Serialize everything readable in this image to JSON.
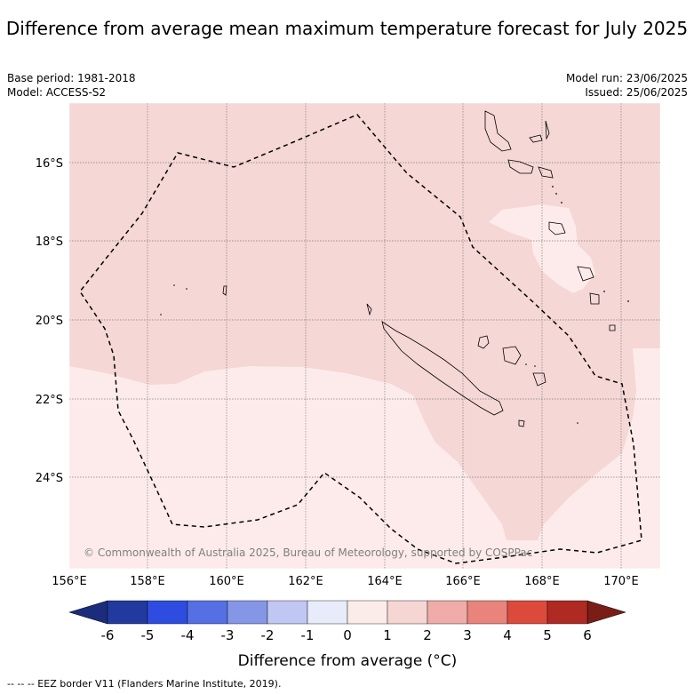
{
  "title": "Difference from average mean maximum temperature forecast for July 2025",
  "base_period": "Base period: 1981-2018",
  "model": "Model: ACCESS-S2",
  "model_run": "Model run: 23/06/2025",
  "issued": "Issued: 25/06/2025",
  "credit": "© Commonwealth of Australia 2025, Bureau of Meteorology, supported by COSPPac",
  "footer": "--  --  -- EEZ border V11 (Flanders Marine Institute, 2019).",
  "lat_labels": [
    "16°S",
    "18°S",
    "20°S",
    "22°S",
    "24°S"
  ],
  "lon_labels": [
    "156°E",
    "158°E",
    "160°E",
    "162°E",
    "164°E",
    "166°E",
    "168°E",
    "170°E"
  ],
  "colorbar": {
    "label": "Difference from average (°C)",
    "ticks": [
      "-6",
      "-5",
      "-4",
      "-3",
      "-2",
      "-1",
      "0",
      "1",
      "2",
      "3",
      "4",
      "5",
      "6"
    ],
    "colors": [
      "#22399e",
      "#2e4de0",
      "#5570e2",
      "#8596e6",
      "#c0c7f2",
      "#e8ebf9",
      "#fcece9",
      "#f6d6d3",
      "#efaca8",
      "#e8847c",
      "#dc4a3c",
      "#ae2a22"
    ],
    "under_color": "#1c2c7c",
    "over_color": "#7a1d17"
  },
  "map_colors": {
    "band_0_1": "#fcebea",
    "band_1_2": "#f5d7d5",
    "grid": "#808080",
    "eez": "#000000"
  }
}
